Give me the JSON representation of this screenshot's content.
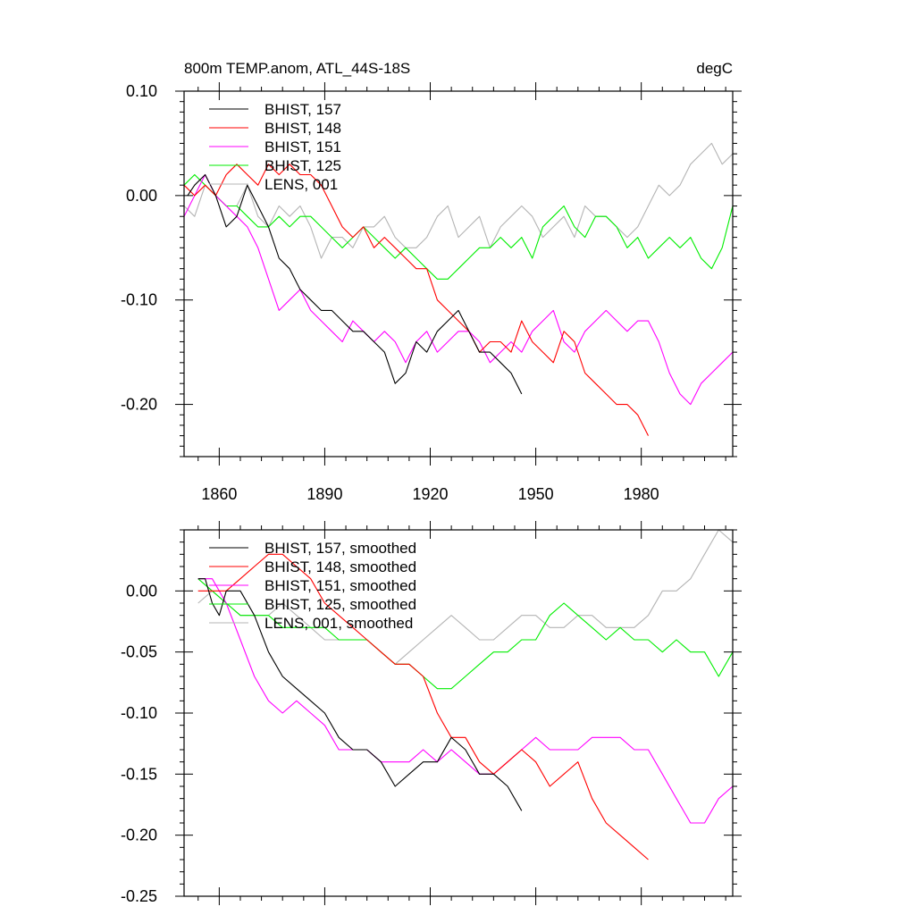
{
  "chart_data": [
    {
      "type": "line",
      "title": "800m TEMP.anom, ATL_44S-18S",
      "units": "degC",
      "xlabel": "",
      "ylabel": "",
      "xlim": [
        1850,
        2006
      ],
      "ylim": [
        -0.25,
        0.1
      ],
      "xticks": [
        1860,
        1890,
        1920,
        1950,
        1980
      ],
      "xtick_labels": [
        "1860",
        "1890",
        "1920",
        "1950",
        "1980"
      ],
      "yticks": [
        0.1,
        0.0,
        -0.1,
        -0.2
      ],
      "ytick_labels": [
        "0.10",
        "0.00",
        "-0.10",
        "-0.20"
      ],
      "grid": false,
      "legend_position": "top-left",
      "series": [
        {
          "name": "LENS, 001",
          "color": "#b4b4b4",
          "x": [
            1850,
            1853,
            1856,
            1859,
            1862,
            1865,
            1868,
            1871,
            1874,
            1877,
            1880,
            1883,
            1886,
            1889,
            1892,
            1895,
            1898,
            1901,
            1904,
            1907,
            1910,
            1913,
            1916,
            1919,
            1922,
            1925,
            1928,
            1931,
            1934,
            1937,
            1940,
            1943,
            1946,
            1949,
            1952,
            1955,
            1958,
            1961,
            1964,
            1967,
            1970,
            1973,
            1976,
            1979,
            1982,
            1985,
            1988,
            1991,
            1994,
            1997,
            2000,
            2003,
            2006
          ],
          "y": [
            -0.01,
            -0.02,
            0.01,
            0.0,
            -0.01,
            -0.01,
            0.01,
            -0.02,
            -0.03,
            -0.01,
            -0.02,
            -0.01,
            -0.03,
            -0.06,
            -0.04,
            -0.04,
            -0.05,
            -0.03,
            -0.03,
            -0.02,
            -0.04,
            -0.05,
            -0.05,
            -0.04,
            -0.02,
            -0.01,
            -0.04,
            -0.03,
            -0.02,
            -0.05,
            -0.03,
            -0.02,
            -0.01,
            -0.02,
            -0.04,
            -0.03,
            -0.02,
            -0.04,
            -0.01,
            -0.02,
            -0.02,
            -0.03,
            -0.04,
            -0.03,
            -0.01,
            0.01,
            0.0,
            0.01,
            0.03,
            0.04,
            0.05,
            0.03,
            0.04
          ]
        },
        {
          "name": "BHIST, 125",
          "color": "#00ee00",
          "x": [
            1850,
            1853,
            1856,
            1859,
            1862,
            1865,
            1868,
            1871,
            1874,
            1877,
            1880,
            1883,
            1886,
            1889,
            1892,
            1895,
            1898,
            1901,
            1904,
            1907,
            1910,
            1913,
            1916,
            1919,
            1922,
            1925,
            1928,
            1931,
            1934,
            1937,
            1940,
            1943,
            1946,
            1949,
            1952,
            1955,
            1958,
            1961,
            1964,
            1967,
            1970,
            1973,
            1976,
            1979,
            1982,
            1985,
            1988,
            1991,
            1994,
            1997,
            2000,
            2003,
            2006
          ],
          "y": [
            0.01,
            0.02,
            0.01,
            0.0,
            -0.01,
            -0.01,
            -0.02,
            -0.03,
            -0.03,
            -0.02,
            -0.03,
            -0.02,
            -0.02,
            -0.03,
            -0.04,
            -0.05,
            -0.04,
            -0.03,
            -0.04,
            -0.05,
            -0.06,
            -0.05,
            -0.06,
            -0.07,
            -0.08,
            -0.08,
            -0.07,
            -0.06,
            -0.05,
            -0.05,
            -0.04,
            -0.05,
            -0.04,
            -0.06,
            -0.03,
            -0.02,
            -0.01,
            -0.03,
            -0.04,
            -0.02,
            -0.02,
            -0.03,
            -0.05,
            -0.04,
            -0.06,
            -0.05,
            -0.04,
            -0.05,
            -0.04,
            -0.06,
            -0.07,
            -0.05,
            -0.01
          ]
        },
        {
          "name": "BHIST, 151",
          "color": "#ff00ff",
          "x": [
            1850,
            1853,
            1856,
            1859,
            1862,
            1865,
            1868,
            1871,
            1874,
            1877,
            1880,
            1883,
            1886,
            1889,
            1892,
            1895,
            1898,
            1901,
            1904,
            1907,
            1910,
            1913,
            1916,
            1919,
            1922,
            1925,
            1928,
            1931,
            1934,
            1937,
            1940,
            1943,
            1946,
            1949,
            1952,
            1955,
            1958,
            1961,
            1964,
            1967,
            1970,
            1973,
            1976,
            1979,
            1982,
            1985,
            1988,
            1991,
            1994,
            1997,
            2000,
            2003,
            2006
          ],
          "y": [
            -0.02,
            0.0,
            0.02,
            0.0,
            -0.01,
            -0.02,
            -0.03,
            -0.05,
            -0.08,
            -0.11,
            -0.1,
            -0.09,
            -0.11,
            -0.12,
            -0.13,
            -0.14,
            -0.12,
            -0.13,
            -0.14,
            -0.13,
            -0.14,
            -0.16,
            -0.14,
            -0.13,
            -0.15,
            -0.14,
            -0.13,
            -0.13,
            -0.14,
            -0.16,
            -0.15,
            -0.14,
            -0.15,
            -0.13,
            -0.12,
            -0.11,
            -0.14,
            -0.15,
            -0.13,
            -0.12,
            -0.11,
            -0.12,
            -0.13,
            -0.12,
            -0.12,
            -0.14,
            -0.17,
            -0.19,
            -0.2,
            -0.18,
            -0.17,
            -0.16,
            -0.15
          ]
        },
        {
          "name": "BHIST, 148",
          "color": "#ff0000",
          "x": [
            1850,
            1853,
            1856,
            1859,
            1862,
            1865,
            1868,
            1871,
            1874,
            1877,
            1880,
            1883,
            1886,
            1889,
            1892,
            1895,
            1898,
            1901,
            1904,
            1907,
            1910,
            1913,
            1916,
            1919,
            1922,
            1925,
            1928,
            1931,
            1934,
            1937,
            1940,
            1943,
            1946,
            1949,
            1952,
            1955,
            1958,
            1961,
            1964,
            1967,
            1970,
            1973,
            1976,
            1979,
            1982
          ],
          "y": [
            0.01,
            0.0,
            0.01,
            0.0,
            0.02,
            0.03,
            0.02,
            0.01,
            0.03,
            0.02,
            0.03,
            0.02,
            0.02,
            0.01,
            -0.01,
            -0.03,
            -0.04,
            -0.03,
            -0.05,
            -0.04,
            -0.05,
            -0.06,
            -0.07,
            -0.07,
            -0.1,
            -0.11,
            -0.12,
            -0.13,
            -0.15,
            -0.14,
            -0.14,
            -0.15,
            -0.12,
            -0.14,
            -0.15,
            -0.16,
            -0.13,
            -0.14,
            -0.17,
            -0.18,
            -0.19,
            -0.2,
            -0.2,
            -0.21,
            -0.23
          ]
        },
        {
          "name": "BHIST, 157",
          "color": "#000000",
          "x": [
            1851,
            1853,
            1856,
            1859,
            1862,
            1865,
            1868,
            1871,
            1874,
            1877,
            1880,
            1883,
            1886,
            1889,
            1892,
            1895,
            1898,
            1901,
            1904,
            1907,
            1910,
            1913,
            1916,
            1919,
            1922,
            1925,
            1928,
            1931,
            1934,
            1937,
            1940,
            1943,
            1946
          ],
          "y": [
            0.0,
            0.01,
            0.02,
            0.0,
            -0.03,
            -0.02,
            0.01,
            -0.01,
            -0.03,
            -0.06,
            -0.07,
            -0.09,
            -0.1,
            -0.11,
            -0.11,
            -0.12,
            -0.13,
            -0.13,
            -0.14,
            -0.15,
            -0.18,
            -0.17,
            -0.14,
            -0.15,
            -0.13,
            -0.12,
            -0.11,
            -0.13,
            -0.15,
            -0.15,
            -0.16,
            -0.17,
            -0.19
          ]
        }
      ]
    },
    {
      "type": "line",
      "title": "",
      "xlabel": "",
      "ylabel": "",
      "xlim": [
        1850,
        2006
      ],
      "ylim": [
        -0.25,
        0.05
      ],
      "xticks": [
        1860,
        1890,
        1920,
        1950,
        1980
      ],
      "yticks": [
        0.0,
        -0.05,
        -0.1,
        -0.15,
        -0.2,
        -0.25
      ],
      "ytick_labels": [
        "0.00",
        "-0.05",
        "-0.10",
        "-0.15",
        "-0.20",
        "-0.25"
      ],
      "grid": false,
      "legend_position": "top-left",
      "series": [
        {
          "name": "LENS, 001, smoothed",
          "color": "#b4b4b4",
          "x": [
            1854,
            1858,
            1862,
            1866,
            1870,
            1874,
            1878,
            1882,
            1886,
            1890,
            1894,
            1898,
            1902,
            1906,
            1910,
            1914,
            1918,
            1922,
            1926,
            1930,
            1934,
            1938,
            1942,
            1946,
            1950,
            1954,
            1958,
            1962,
            1966,
            1970,
            1974,
            1978,
            1982,
            1986,
            1990,
            1994,
            1998,
            2002,
            2006
          ],
          "y": [
            -0.01,
            0.0,
            -0.01,
            -0.02,
            -0.02,
            -0.02,
            -0.01,
            -0.02,
            -0.03,
            -0.04,
            -0.04,
            -0.04,
            -0.04,
            -0.05,
            -0.06,
            -0.05,
            -0.04,
            -0.03,
            -0.02,
            -0.03,
            -0.04,
            -0.04,
            -0.03,
            -0.02,
            -0.02,
            -0.03,
            -0.03,
            -0.02,
            -0.02,
            -0.03,
            -0.03,
            -0.03,
            -0.02,
            0.0,
            0.0,
            0.01,
            0.03,
            0.05,
            0.04
          ]
        },
        {
          "name": "BHIST, 125, smoothed",
          "color": "#00ee00",
          "x": [
            1854,
            1858,
            1862,
            1866,
            1870,
            1874,
            1878,
            1882,
            1886,
            1890,
            1894,
            1898,
            1902,
            1906,
            1910,
            1914,
            1918,
            1922,
            1926,
            1930,
            1934,
            1938,
            1942,
            1946,
            1950,
            1954,
            1958,
            1962,
            1966,
            1970,
            1974,
            1978,
            1982,
            1986,
            1990,
            1994,
            1998,
            2002,
            2006
          ],
          "y": [
            0.01,
            0.0,
            -0.01,
            -0.02,
            -0.02,
            -0.02,
            -0.03,
            -0.03,
            -0.03,
            -0.03,
            -0.04,
            -0.04,
            -0.04,
            -0.05,
            -0.06,
            -0.06,
            -0.07,
            -0.08,
            -0.08,
            -0.07,
            -0.06,
            -0.05,
            -0.05,
            -0.04,
            -0.04,
            -0.02,
            -0.01,
            -0.02,
            -0.03,
            -0.04,
            -0.03,
            -0.04,
            -0.04,
            -0.05,
            -0.04,
            -0.05,
            -0.05,
            -0.07,
            -0.05
          ]
        },
        {
          "name": "BHIST, 151, smoothed",
          "color": "#ff00ff",
          "x": [
            1854,
            1858,
            1862,
            1866,
            1870,
            1874,
            1878,
            1882,
            1886,
            1890,
            1894,
            1898,
            1902,
            1906,
            1910,
            1914,
            1918,
            1922,
            1926,
            1930,
            1934,
            1938,
            1942,
            1946,
            1950,
            1954,
            1958,
            1962,
            1966,
            1970,
            1974,
            1978,
            1982,
            1986,
            1990,
            1994,
            1998,
            2002,
            2006
          ],
          "y": [
            0.01,
            0.01,
            -0.01,
            -0.04,
            -0.07,
            -0.09,
            -0.1,
            -0.09,
            -0.1,
            -0.11,
            -0.13,
            -0.13,
            -0.13,
            -0.14,
            -0.14,
            -0.14,
            -0.13,
            -0.14,
            -0.13,
            -0.14,
            -0.15,
            -0.15,
            -0.14,
            -0.13,
            -0.12,
            -0.13,
            -0.13,
            -0.13,
            -0.12,
            -0.12,
            -0.12,
            -0.13,
            -0.13,
            -0.15,
            -0.17,
            -0.19,
            -0.19,
            -0.17,
            -0.16
          ]
        },
        {
          "name": "BHIST, 148, smoothed",
          "color": "#ff0000",
          "x": [
            1854,
            1858,
            1862,
            1866,
            1870,
            1874,
            1878,
            1882,
            1886,
            1890,
            1894,
            1898,
            1902,
            1906,
            1910,
            1914,
            1918,
            1922,
            1926,
            1930,
            1934,
            1938,
            1942,
            1946,
            1950,
            1954,
            1958,
            1962,
            1966,
            1970,
            1974,
            1978,
            1982
          ],
          "y": [
            0.0,
            0.0,
            0.0,
            0.01,
            0.02,
            0.03,
            0.03,
            0.02,
            0.01,
            -0.01,
            -0.02,
            -0.03,
            -0.04,
            -0.05,
            -0.06,
            -0.06,
            -0.07,
            -0.1,
            -0.12,
            -0.12,
            -0.14,
            -0.15,
            -0.14,
            -0.13,
            -0.14,
            -0.16,
            -0.15,
            -0.14,
            -0.17,
            -0.19,
            -0.2,
            -0.21,
            -0.22
          ]
        },
        {
          "name": "BHIST, 157, smoothed",
          "color": "#000000",
          "x": [
            1854,
            1856,
            1858,
            1860,
            1862,
            1866,
            1870,
            1874,
            1878,
            1882,
            1886,
            1890,
            1894,
            1898,
            1902,
            1906,
            1910,
            1914,
            1918,
            1922,
            1926,
            1930,
            1934,
            1938,
            1942,
            1946
          ],
          "y": [
            0.01,
            0.01,
            -0.01,
            -0.02,
            0.0,
            0.0,
            -0.02,
            -0.05,
            -0.07,
            -0.08,
            -0.09,
            -0.1,
            -0.12,
            -0.13,
            -0.13,
            -0.14,
            -0.16,
            -0.15,
            -0.14,
            -0.14,
            -0.12,
            -0.13,
            -0.15,
            -0.15,
            -0.16,
            -0.18
          ]
        }
      ]
    }
  ]
}
